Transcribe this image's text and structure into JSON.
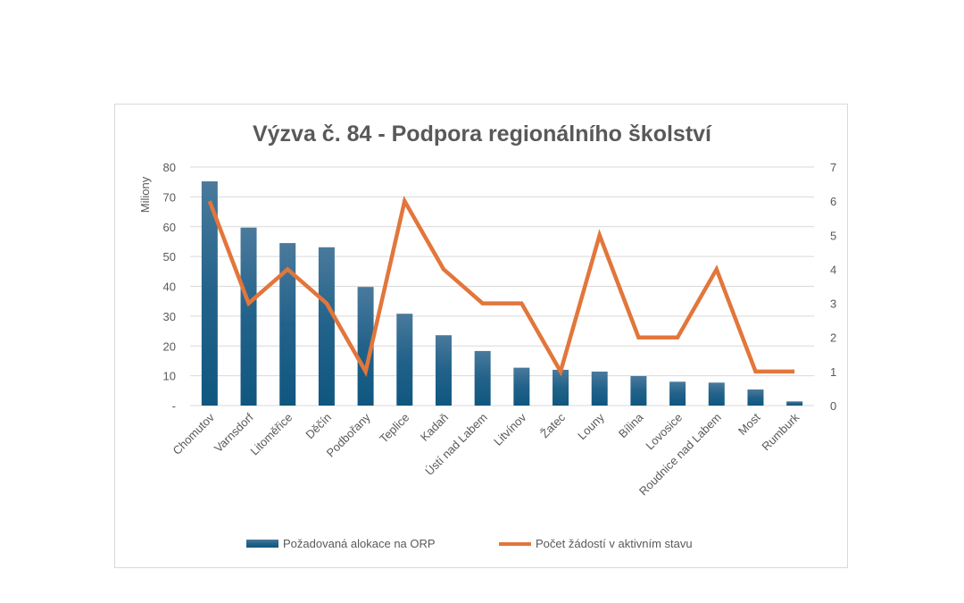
{
  "chart_data": {
    "type": "bar",
    "title": "Výzva č. 84 - Podpora regionálního školství",
    "ylabel": "Miliony",
    "y2label": "",
    "xlabel": "",
    "ylim": [
      0,
      80
    ],
    "y2lim": [
      0,
      7
    ],
    "yticks": [
      "-",
      "10",
      "20",
      "30",
      "40",
      "50",
      "60",
      "70",
      "80"
    ],
    "y2ticks": [
      "0",
      "1",
      "2",
      "3",
      "4",
      "5",
      "6",
      "7"
    ],
    "categories": [
      "Chomutov",
      "Varnsdorf",
      "Litoměřice",
      "Děčín",
      "Podbořany",
      "Teplice",
      "Kadaň",
      "Ústí nad Labem",
      "Litvínov",
      "Žatec",
      "Louny",
      "Bílina",
      "Lovosice",
      "Roudnice nad Labem",
      "Most",
      "Rumburk"
    ],
    "series": [
      {
        "name": "Požadovaná alokace na ORP",
        "type": "bar",
        "axis": "left",
        "color": "#1f5f86",
        "values": [
          75.2,
          59.7,
          54.5,
          53.1,
          39.8,
          30.8,
          23.6,
          18.3,
          12.7,
          12.0,
          11.4,
          9.9,
          8.0,
          7.7,
          5.4,
          1.4
        ]
      },
      {
        "name": "Počet žádostí v aktivním stavu",
        "type": "line",
        "axis": "right",
        "color": "#e2763b",
        "values": [
          6,
          3,
          4,
          3,
          1,
          6,
          4,
          3,
          3,
          1,
          5,
          2,
          2,
          4,
          1,
          1
        ]
      }
    ],
    "grid": true,
    "legend_position": "bottom"
  }
}
